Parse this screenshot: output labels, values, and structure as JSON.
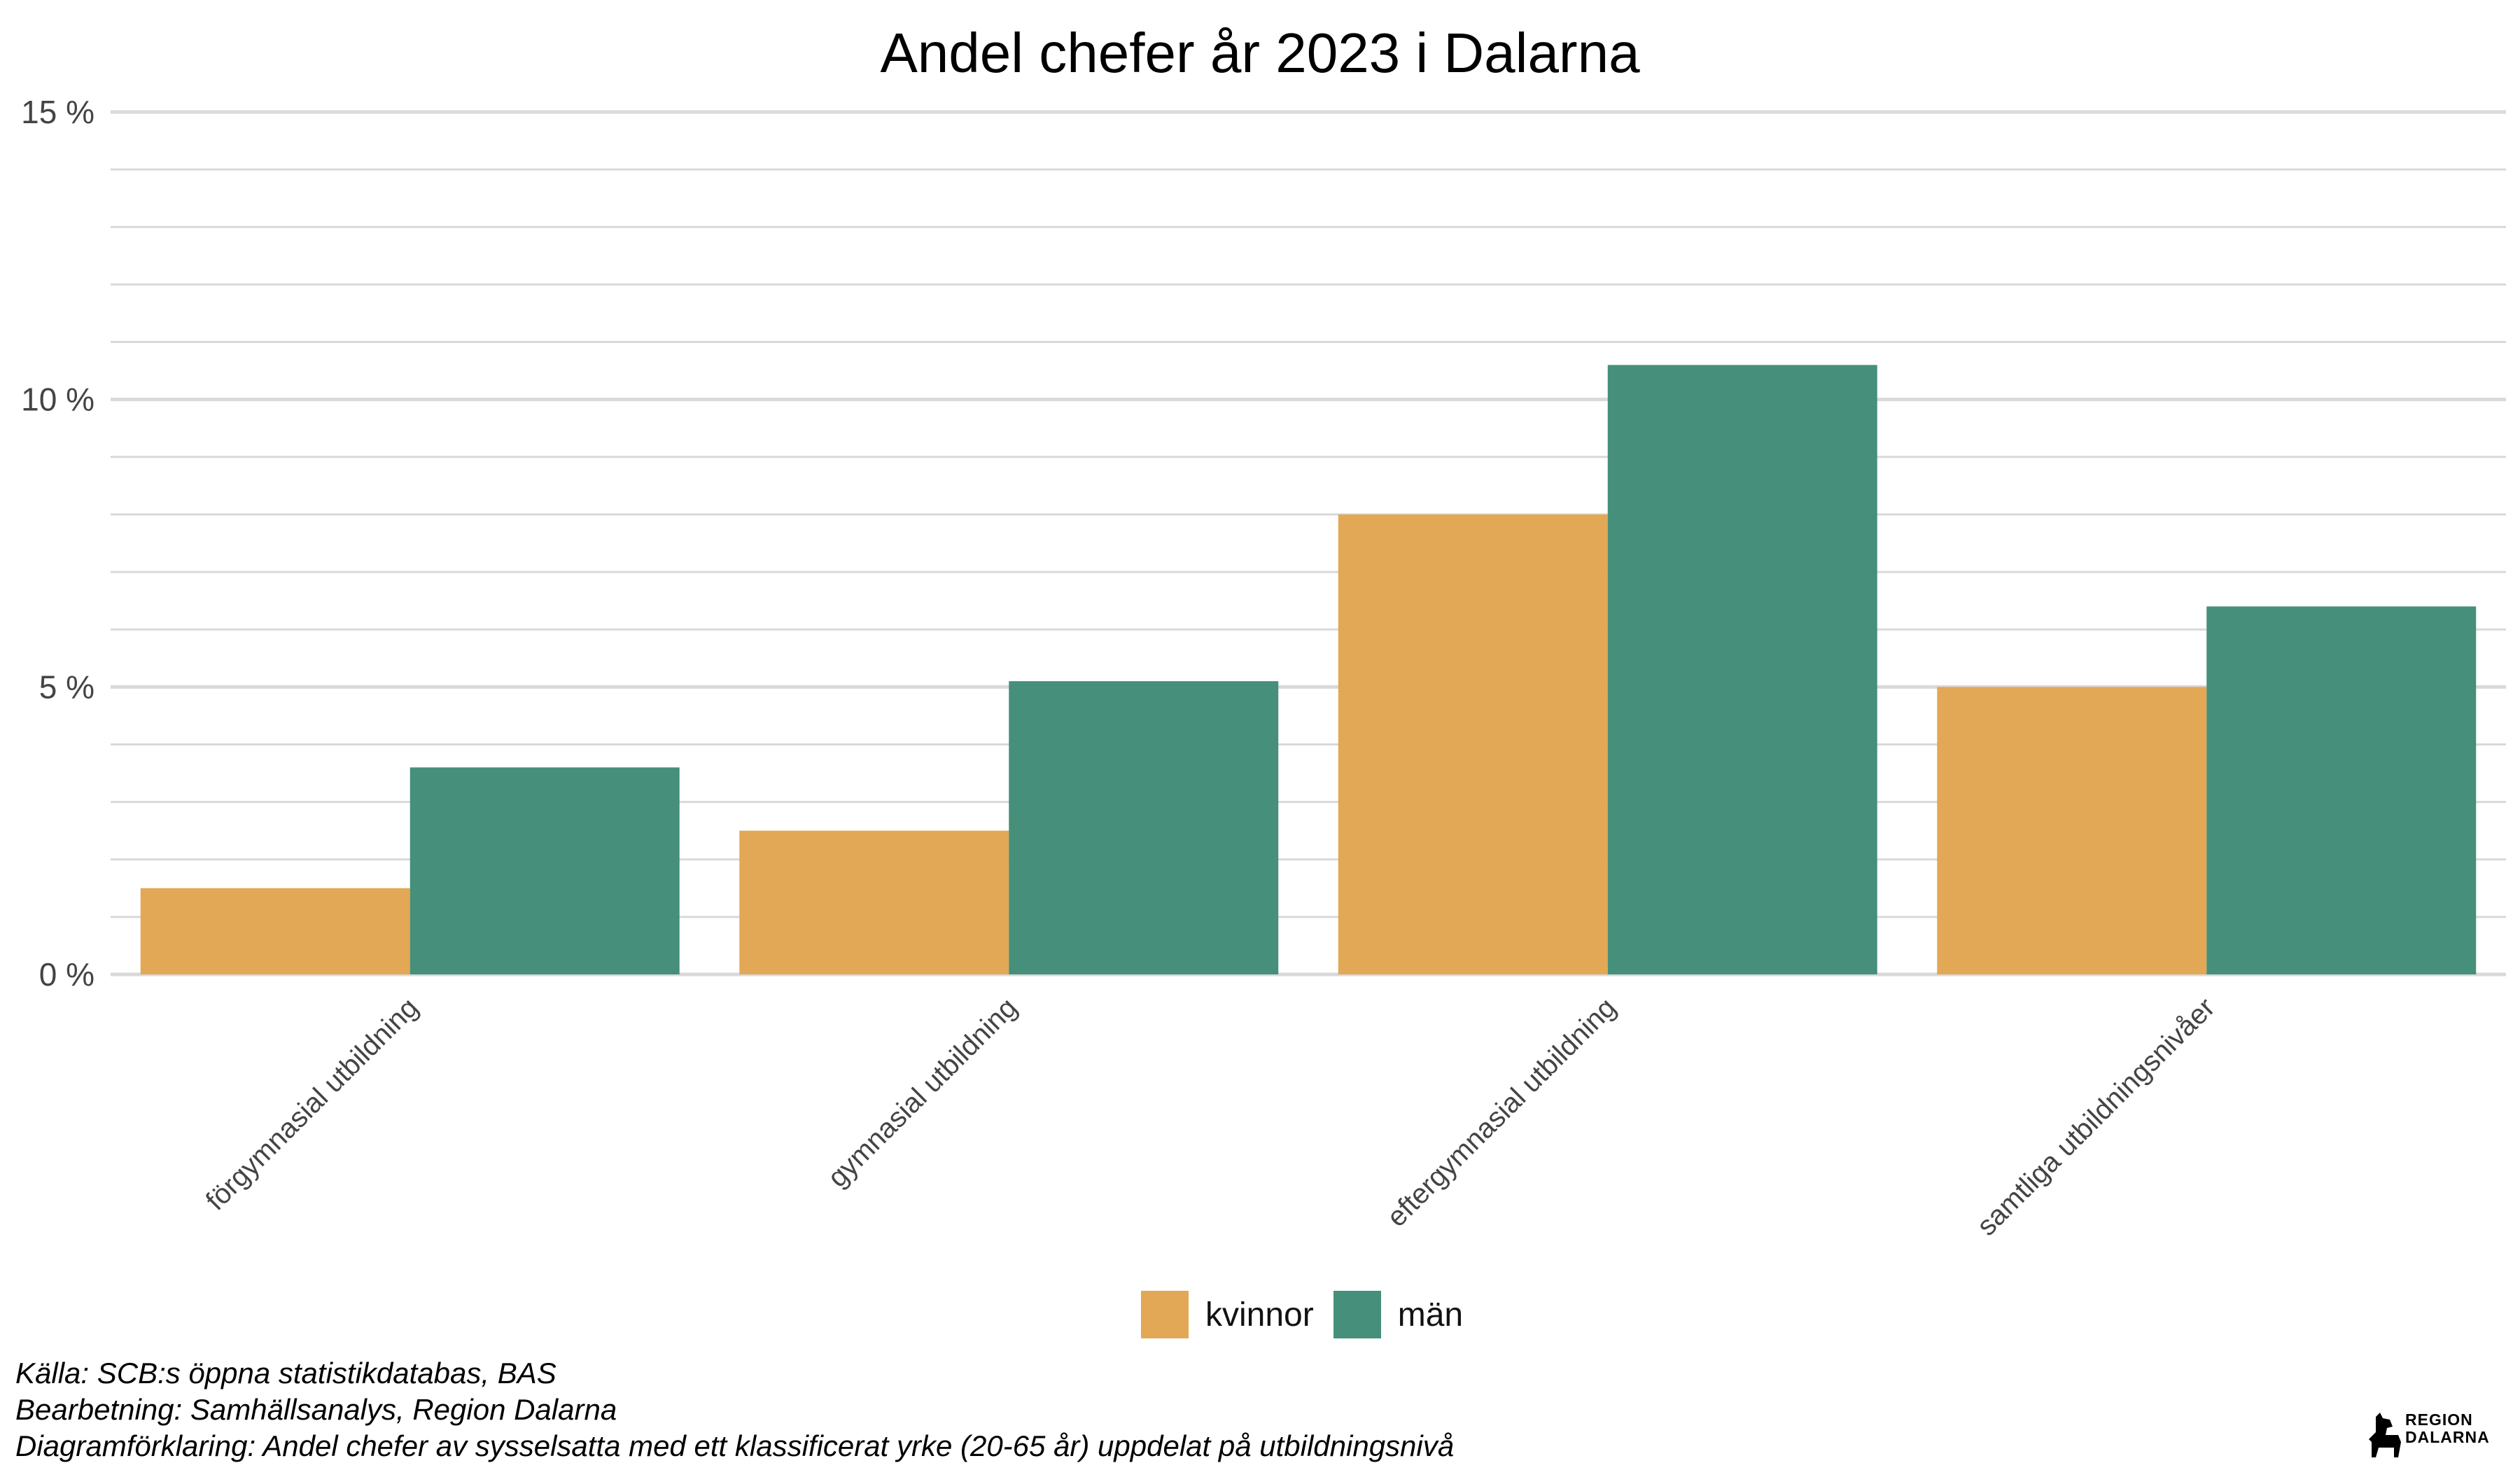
{
  "chart_data": {
    "type": "bar",
    "title": "Andel chefer år 2023 i Dalarna",
    "xlabel": "",
    "ylabel": "",
    "categories": [
      "förgymnasial utbildning",
      "gymnasial utbildning",
      "eftergymnasial utbildning",
      "samtliga utbildningsnivåer"
    ],
    "series": [
      {
        "name": "kvinnor",
        "color": "#E2A855",
        "values": [
          1.5,
          2.5,
          8.0,
          5.0
        ]
      },
      {
        "name": "män",
        "color": "#468F7A",
        "values": [
          3.6,
          5.1,
          10.6,
          6.4
        ]
      }
    ],
    "ylim": [
      0,
      15
    ],
    "yticks": [
      0,
      5,
      10,
      15
    ],
    "ytick_labels": [
      "0 %",
      "5 %",
      "10 %",
      "15 %"
    ],
    "minor_gridlines": [
      1,
      2,
      3,
      4,
      6,
      7,
      8,
      9,
      11,
      12,
      13,
      14
    ],
    "grid": true,
    "legend_position": "bottom-center",
    "gridline_color": "#D9D9D9",
    "tick_label_color": "#444444"
  },
  "footer": {
    "source": "Källa: SCB:s öppna statistikdatabas, BAS",
    "processing": "Bearbetning: Samhällsanalys, Region Dalarna",
    "explanation": "Diagramförklaring: Andel chefer av sysselsatta med ett klassificerat yrke (20-65 år) uppdelat på utbildningsnivå"
  },
  "logo": {
    "line1": "REGION",
    "line2": "DALARNA",
    "icon": "dala-horse-icon"
  }
}
